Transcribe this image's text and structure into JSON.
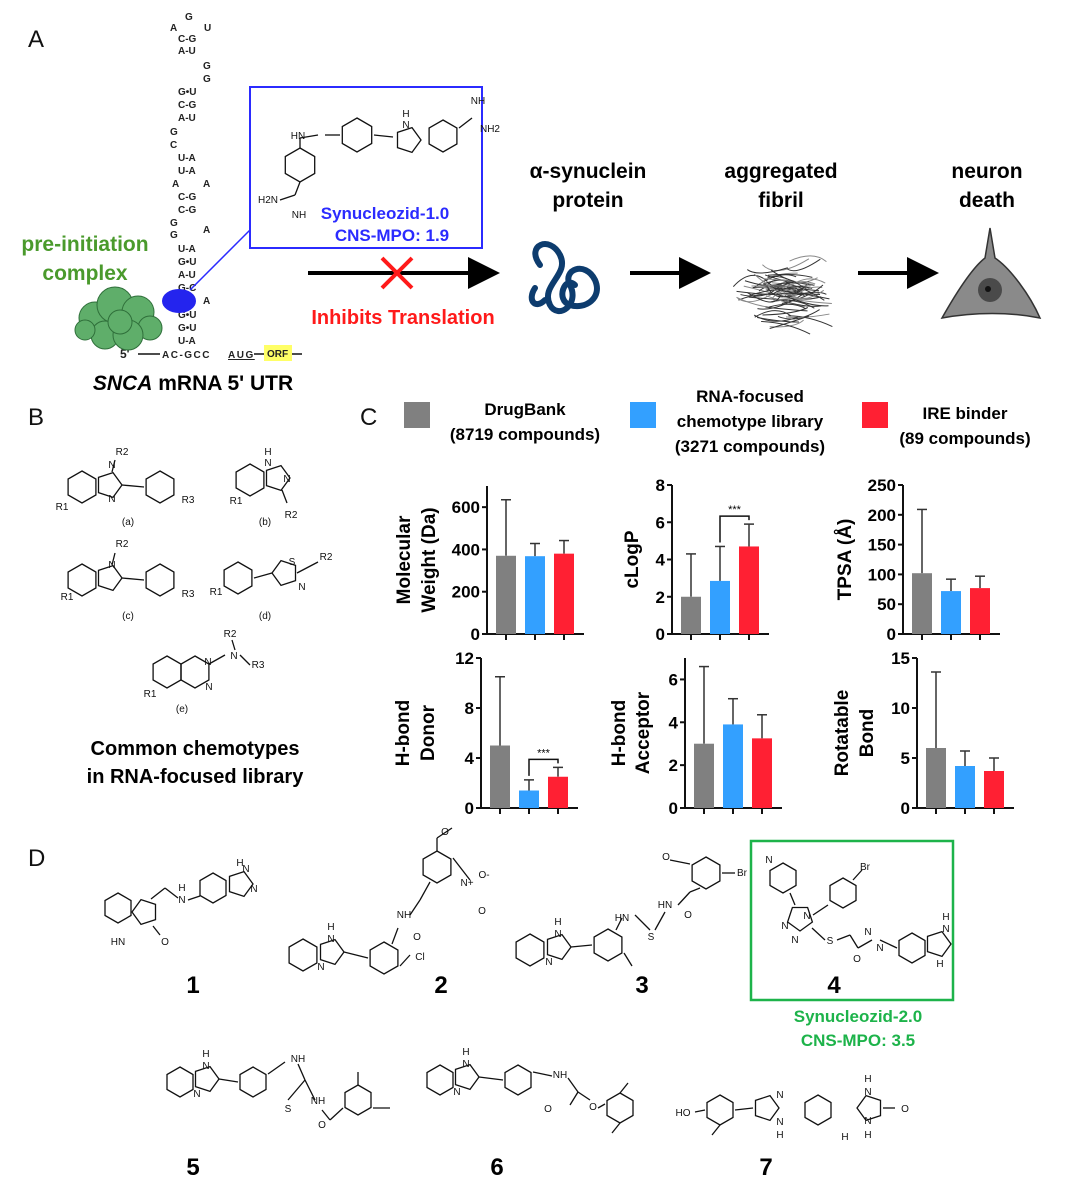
{
  "panel_labels": {
    "a": "A",
    "b": "B",
    "c": "C",
    "d": "D"
  },
  "panel_a": {
    "rna_tokens": [
      "G",
      "A",
      "U",
      "C-G",
      "A-U",
      "G",
      "G",
      "G•U",
      "C-G",
      "A-U",
      "G",
      "C",
      "U-A",
      "U-A",
      "A",
      "A",
      "C-G",
      "C-G",
      "G",
      "A",
      "G",
      "U-A",
      "G•U",
      "A-U",
      "G-C",
      "A",
      "G•U",
      "G•U",
      "U-A"
    ],
    "five_prime": "5'",
    "seq_start": "AC-GCC",
    "start_codon": "AUG",
    "orf": "ORF",
    "mrna_title_italic": "SNCA",
    "mrna_title_rest": "mRNA 5' UTR",
    "complex_label": [
      "pre-initiation",
      "complex"
    ],
    "compound": {
      "name": "Synucleozid-1.0",
      "mpo": "CNS-MPO: 1.9",
      "atoms": [
        "HN",
        "H",
        "N",
        "NH",
        "NH2",
        "H2N",
        "NH"
      ]
    },
    "inhibit_label": "Inhibits Translation",
    "steps": [
      {
        "label": [
          "α-synuclein",
          "protein"
        ],
        "icon": "protein-icon"
      },
      {
        "label": [
          "aggregated",
          "fibril"
        ],
        "icon": "fibril-icon"
      },
      {
        "label": [
          "neuron",
          "death"
        ],
        "icon": "neuron-icon"
      }
    ],
    "colors": {
      "complex": "#4a9a2c",
      "compound_box": "#2b2bff",
      "inhibit": "#ff1a1a",
      "orf_highlight": "#ffff66",
      "protein": "#0d3c6e"
    }
  },
  "panel_b": {
    "chemotypes": [
      {
        "id": "(a)",
        "atoms": [
          "N",
          "R2",
          "N",
          "R1",
          "R3"
        ]
      },
      {
        "id": "(b)",
        "atoms": [
          "H",
          "N",
          "N",
          "R1",
          "R2"
        ]
      },
      {
        "id": "(c)",
        "atoms": [
          "N",
          "R2",
          "R1",
          "R3"
        ]
      },
      {
        "id": "(d)",
        "atoms": [
          "S",
          "R2",
          "N",
          "R1"
        ]
      },
      {
        "id": "(e)",
        "atoms": [
          "N",
          "N",
          "R2",
          "N",
          "R3",
          "R1"
        ]
      }
    ],
    "caption": [
      "Common chemotypes",
      "in RNA-focused library"
    ]
  },
  "panel_c": {
    "legend": [
      {
        "label": [
          "DrugBank",
          "(8719 compounds)"
        ],
        "color": "#808080"
      },
      {
        "label": [
          "RNA-focused",
          "chemotype library",
          "(3271 compounds)"
        ],
        "color": "#33a0ff"
      },
      {
        "label": [
          "IRE binder",
          "(89 compounds)"
        ],
        "color": "#ff2033"
      }
    ]
  },
  "chart_data": [
    {
      "type": "bar",
      "ylabel": [
        "Molecular",
        "Weight (Da)"
      ],
      "ylim": [
        0,
        700
      ],
      "yticks": [
        0,
        200,
        400,
        600
      ],
      "values": [
        370,
        368,
        380
      ],
      "errors": [
        265,
        60,
        62
      ],
      "significance": null
    },
    {
      "type": "bar",
      "ylabel": [
        "cLogP"
      ],
      "ylim": [
        0,
        8
      ],
      "yticks": [
        0,
        2,
        4,
        6,
        8
      ],
      "values": [
        2.0,
        2.85,
        4.7
      ],
      "errors": [
        2.3,
        1.85,
        1.2
      ],
      "significance": {
        "between": [
          1,
          2
        ],
        "label": "***"
      }
    },
    {
      "type": "bar",
      "ylabel": [
        "TPSA (Å)"
      ],
      "ylim": [
        0,
        250
      ],
      "yticks": [
        0,
        50,
        100,
        150,
        200,
        250
      ],
      "values": [
        102,
        72,
        77
      ],
      "errors": [
        107,
        20,
        20
      ],
      "significance": null
    },
    {
      "type": "bar",
      "ylabel": [
        "H-bond",
        "Donor"
      ],
      "ylim": [
        0,
        12
      ],
      "yticks": [
        0,
        4,
        8,
        12
      ],
      "values": [
        5.0,
        1.4,
        2.5
      ],
      "errors": [
        5.5,
        0.85,
        0.75
      ],
      "significance": {
        "between": [
          1,
          2
        ],
        "label": "***"
      }
    },
    {
      "type": "bar",
      "ylabel": [
        "H-bond",
        "Acceptor"
      ],
      "ylim": [
        0,
        7
      ],
      "yticks": [
        0,
        2,
        4,
        6
      ],
      "values": [
        3.0,
        3.9,
        3.25
      ],
      "errors": [
        3.6,
        1.2,
        1.1
      ],
      "significance": null
    },
    {
      "type": "bar",
      "ylabel": [
        "Rotatable",
        "Bond"
      ],
      "ylim": [
        0,
        15
      ],
      "yticks": [
        0,
        5,
        10,
        15
      ],
      "values": [
        6.0,
        4.2,
        3.7
      ],
      "errors": [
        7.6,
        1.5,
        1.3
      ],
      "significance": null
    }
  ],
  "panel_d": {
    "compounds": [
      {
        "number": "1",
        "atoms": [
          "HN",
          "O",
          "H",
          "N",
          "H",
          "N",
          "N"
        ]
      },
      {
        "number": "2",
        "atoms": [
          "H",
          "N",
          "N",
          "NH",
          "O",
          "Cl",
          "O",
          "N+",
          "O-",
          "O"
        ]
      },
      {
        "number": "3",
        "atoms": [
          "H",
          "N",
          "N",
          "HN",
          "S",
          "HN",
          "O",
          "O",
          "Br"
        ]
      },
      {
        "number": "4",
        "atoms": [
          "N",
          "N",
          "N",
          "N",
          "Br",
          "S",
          "O",
          "H",
          "N",
          "H",
          "N",
          "N"
        ]
      },
      {
        "number": "5",
        "atoms": [
          "H",
          "N",
          "N",
          "NH",
          "S",
          "NH",
          "O"
        ]
      },
      {
        "number": "6",
        "atoms": [
          "H",
          "N",
          "N",
          "NH",
          "O",
          "O"
        ]
      },
      {
        "number": "7",
        "atoms": [
          "HO",
          "N",
          "N",
          "H",
          "H",
          "N",
          "N",
          "H",
          "H",
          "O"
        ]
      }
    ],
    "highlight": {
      "name": "Synucleozid-2.0",
      "mpo": "CNS-MPO: 3.5",
      "color": "#1db34a"
    }
  }
}
